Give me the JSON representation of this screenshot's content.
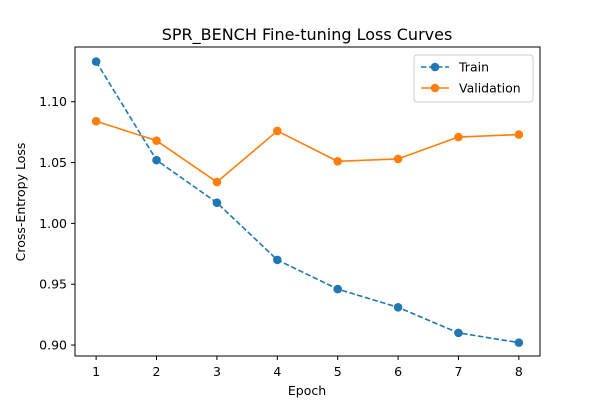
{
  "chart_data": {
    "type": "line",
    "title": "SPR_BENCH Fine-tuning Loss Curves",
    "xlabel": "Epoch",
    "ylabel": "Cross-Entropy Loss",
    "x": [
      1,
      2,
      3,
      4,
      5,
      6,
      7,
      8
    ],
    "xticks": [
      "1",
      "2",
      "3",
      "4",
      "5",
      "6",
      "7",
      "8"
    ],
    "xlim": [
      0.65,
      8.35
    ],
    "yticks": [
      "0.90",
      "0.95",
      "1.00",
      "1.05",
      "1.10"
    ],
    "ylim": [
      0.891,
      1.145
    ],
    "grid": false,
    "legend_position": "top-right",
    "series": [
      {
        "name": "Train",
        "values": [
          1.133,
          1.052,
          1.017,
          0.97,
          0.946,
          0.931,
          0.91,
          0.902
        ],
        "color": "#1f77b4",
        "line_style": "dashed",
        "marker": "circle"
      },
      {
        "name": "Validation",
        "values": [
          1.084,
          1.068,
          1.034,
          1.076,
          1.051,
          1.053,
          1.071,
          1.073
        ],
        "color": "#ff7f0e",
        "line_style": "solid",
        "marker": "circle"
      }
    ]
  }
}
